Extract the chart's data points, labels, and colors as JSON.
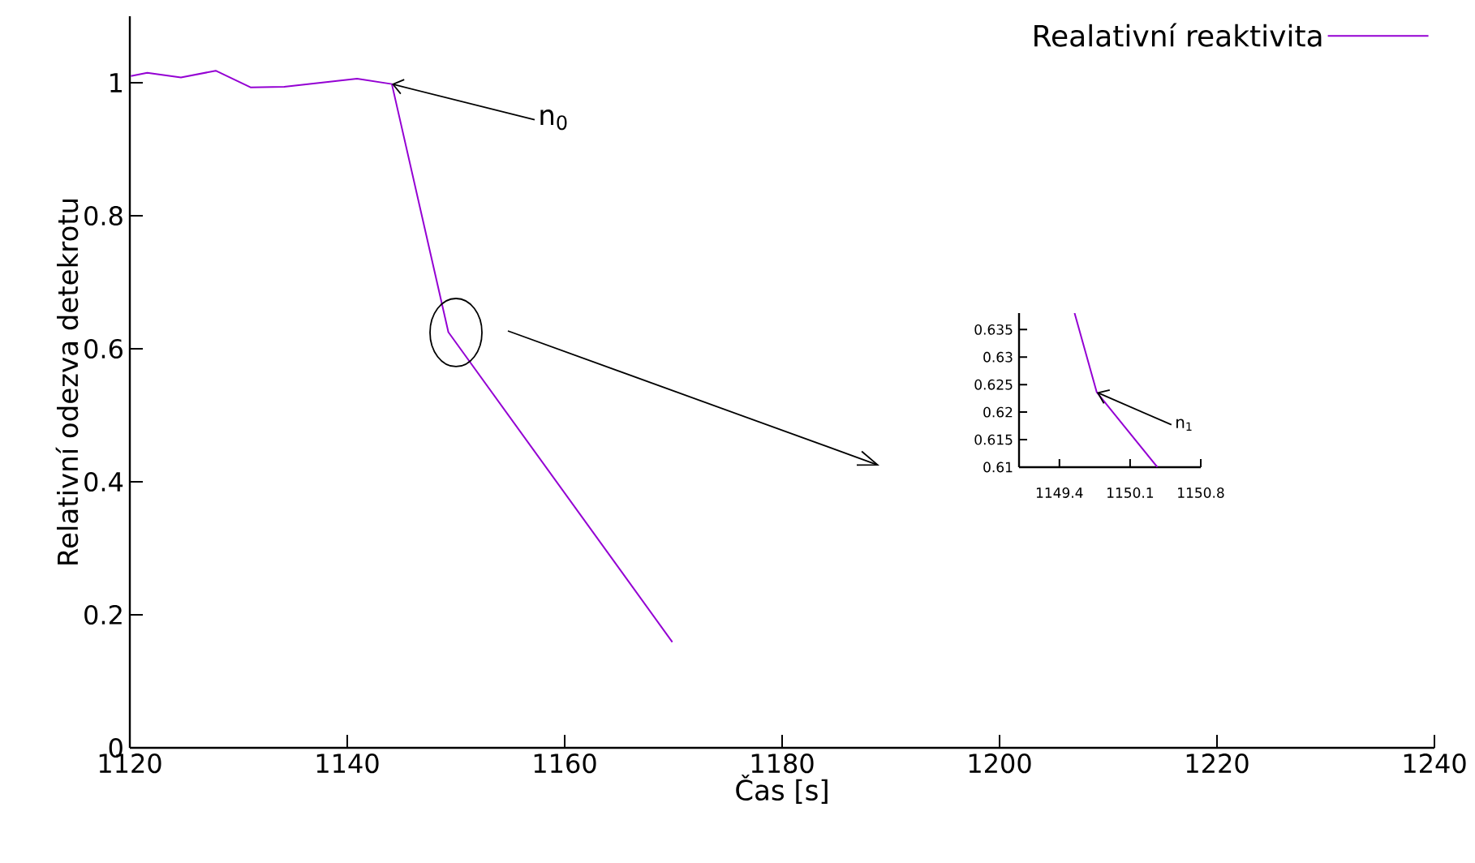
{
  "chart_data": [
    {
      "type": "line",
      "xlabel": "Čas [s]",
      "ylabel": "Relativní odezva detekrotu",
      "x": [
        1120.1,
        1121.6,
        1124.7,
        1127.9,
        1131.1,
        1134.2,
        1140.9,
        1144.1,
        1149.3,
        1169.9
      ],
      "series": [
        {
          "name": "Realativní reaktivita",
          "color": "#9400d3",
          "values": [
            1.01,
            1.015,
            1.008,
            1.018,
            0.993,
            0.994,
            1.006,
            0.998,
            0.625,
            0.159
          ]
        }
      ],
      "xlim": [
        1120,
        1240
      ],
      "xticks": [
        1120,
        1140,
        1160,
        1180,
        1200,
        1220,
        1240
      ],
      "ylim": [
        0,
        1.1
      ],
      "yticks": [
        0,
        0.2,
        0.4,
        0.6,
        0.8,
        1
      ],
      "legend": "top right",
      "annotations": [
        {
          "text": "n$_{0}$",
          "x": 1144.1,
          "y": 0.998
        }
      ]
    },
    {
      "type": "line",
      "x": [
        1149.55,
        1149.77,
        1150.37
      ],
      "series": [
        {
          "color": "#9400d3",
          "values": [
            0.638,
            0.6236,
            0.61
          ]
        }
      ],
      "xlim": [
        1149.0,
        1150.8
      ],
      "xticks": [
        1149.4,
        1150.1,
        1150.8
      ],
      "ylim": [
        0.61,
        0.638
      ],
      "yticks": [
        0.61,
        0.615,
        0.62,
        0.625,
        0.63,
        0.635
      ],
      "annotations": [
        {
          "text": "n$_{1}$",
          "x": 1149.77,
          "y": 0.6236
        }
      ]
    }
  ]
}
